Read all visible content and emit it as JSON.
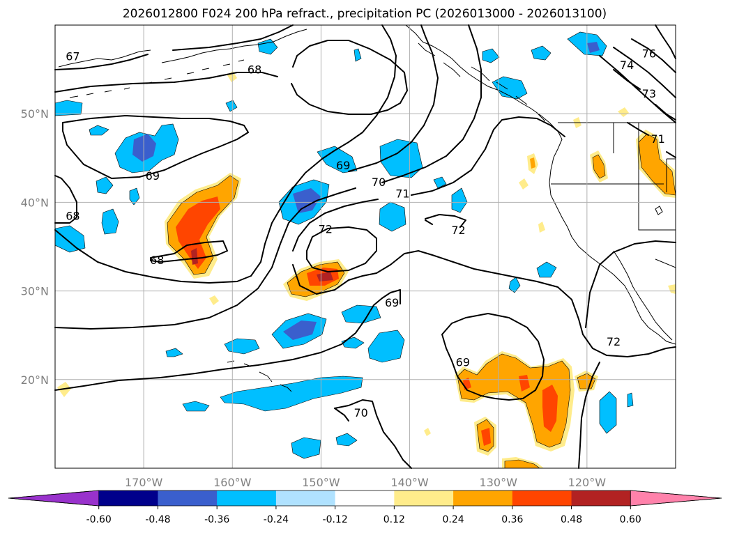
{
  "title": "2026012800 F024 200 hPa refract., precipitation PC (2026013000 - 2026013100)",
  "map": {
    "lon_range": [
      -180,
      -110
    ],
    "lat_range": [
      10,
      60
    ],
    "lon_ticks": [
      {
        "lon": -170,
        "label": "170°W"
      },
      {
        "lon": -160,
        "label": "160°W"
      },
      {
        "lon": -150,
        "label": "150°W"
      },
      {
        "lon": -140,
        "label": "140°W"
      },
      {
        "lon": -130,
        "label": "130°W"
      },
      {
        "lon": -120,
        "label": "120°W"
      }
    ],
    "lat_ticks": [
      {
        "lat": 50,
        "label": "50°N"
      },
      {
        "lat": 40,
        "label": "40°N"
      },
      {
        "lat": 30,
        "label": "30°N"
      },
      {
        "lat": 20,
        "label": "20°N"
      }
    ],
    "grid": true
  },
  "contour_labels": [
    {
      "text": "67",
      "lon": -178,
      "lat": 56.5
    },
    {
      "text": "68",
      "lon": -157.5,
      "lat": 55
    },
    {
      "text": "76",
      "lon": -113,
      "lat": 56.8
    },
    {
      "text": "74",
      "lon": -115.5,
      "lat": 55.5
    },
    {
      "text": "73",
      "lon": -113,
      "lat": 52.3
    },
    {
      "text": "71",
      "lon": -112,
      "lat": 47.2
    },
    {
      "text": "69",
      "lon": -169,
      "lat": 43
    },
    {
      "text": "69",
      "lon": -147.5,
      "lat": 44.2
    },
    {
      "text": "70",
      "lon": -143.5,
      "lat": 42.3
    },
    {
      "text": "71",
      "lon": -140.8,
      "lat": 41
    },
    {
      "text": "68",
      "lon": -178,
      "lat": 38.5
    },
    {
      "text": "72",
      "lon": -149.5,
      "lat": 37
    },
    {
      "text": "72",
      "lon": -134.5,
      "lat": 36.9
    },
    {
      "text": "68",
      "lon": -168.5,
      "lat": 33.5
    },
    {
      "text": "69",
      "lon": -142,
      "lat": 28.7
    },
    {
      "text": "72",
      "lon": -117,
      "lat": 24.3
    },
    {
      "text": "69",
      "lon": -134,
      "lat": 22
    },
    {
      "text": "70",
      "lon": -145.5,
      "lat": 16.3
    }
  ],
  "colorbar": {
    "boundaries": [
      "-0.60",
      "-0.48",
      "-0.36",
      "-0.24",
      "-0.12",
      "0.12",
      "0.24",
      "0.36",
      "0.48",
      "0.60"
    ],
    "colors": [
      "#9932cc",
      "#00008b",
      "#3a5fcd",
      "#00bfff",
      "#b0e2ff",
      "#ffffff",
      "#ffec8b",
      "#ffa500",
      "#ff4500",
      "#b22222",
      "#ff82ab"
    ]
  }
}
